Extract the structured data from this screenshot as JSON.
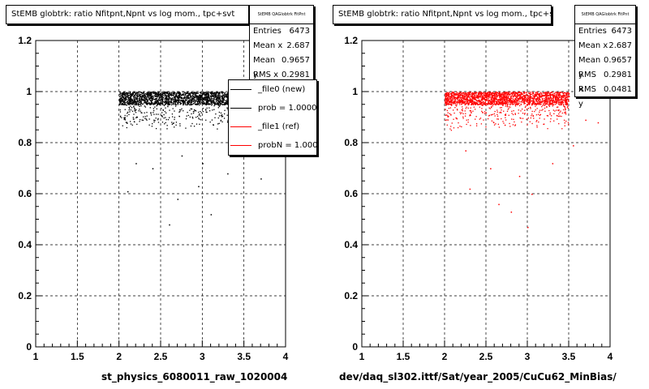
{
  "pads": [
    {
      "title": "StEMB globtrk: ratio Nfitpnt,Npnt vs log mom., tpc+svt",
      "stats_title": "StEMB QAGlobtrk FitPnt NoHitTS",
      "stats": [
        {
          "label": "Entries",
          "value": "6473"
        },
        {
          "label": "Mean x",
          "value": "2.687"
        },
        {
          "label": "Mean y",
          "value": "0.9657"
        },
        {
          "label": "RMS x",
          "value": "0.2981"
        }
      ],
      "legend": [
        {
          "text": "_file0 (new)",
          "color": "#000000"
        },
        {
          "text": "prob = 1.000000",
          "color": "#000000"
        },
        {
          "text": "_file1 (ref)",
          "color": "#ff0000"
        },
        {
          "text": "probN = 1.000000",
          "color": "#ff0000"
        }
      ],
      "bottom_label": "st_physics_6080011_raw_1020004",
      "marker_color": "#000000"
    },
    {
      "title": "StEMB globtrk: ratio Nfitpnt,Npnt vs log mom., tpc+svt",
      "stats_title": "StEMB QAGlobtrk FitPnt NoHitTS",
      "stats": [
        {
          "label": "Entries",
          "value": "6473"
        },
        {
          "label": "Mean x",
          "value": "2.687"
        },
        {
          "label": "Mean y",
          "value": "0.9657"
        },
        {
          "label": "RMS x",
          "value": "0.2981"
        },
        {
          "label": "RMS y",
          "value": "0.0481"
        }
      ],
      "bottom_label": "dev/daq_sl302.ittf/Sat/year_2005/CuCu62_MinBias/",
      "marker_color": "#ff0000"
    }
  ],
  "chart_data": [
    {
      "type": "scatter",
      "title": "StEMB globtrk: ratio Nfitpnt,Npnt vs log mom., tpc+svt",
      "xlim": [
        1,
        4
      ],
      "ylim": [
        0,
        1.2
      ],
      "x_ticks": [
        "1",
        "1.5",
        "2",
        "2.5",
        "3",
        "3.5",
        "4"
      ],
      "y_ticks": [
        "0",
        "0.2",
        "0.4",
        "0.6",
        "0.8",
        "1",
        "1.2"
      ],
      "grid": true,
      "color": "#000000",
      "band": {
        "x": [
          2.0,
          3.5
        ],
        "y": [
          0.85,
          1.0
        ],
        "dense_y": [
          0.95,
          1.0
        ]
      },
      "outliers": [
        [
          2.4,
          0.7
        ],
        [
          2.6,
          0.48
        ],
        [
          2.7,
          0.58
        ],
        [
          3.1,
          0.52
        ],
        [
          2.95,
          0.63
        ],
        [
          3.3,
          0.68
        ],
        [
          2.2,
          0.72
        ],
        [
          3.6,
          0.79
        ],
        [
          2.75,
          0.75
        ],
        [
          3.0,
          0.72
        ],
        [
          2.1,
          0.61
        ],
        [
          3.7,
          0.66
        ]
      ]
    },
    {
      "type": "scatter",
      "title": "StEMB globtrk: ratio Nfitpnt,Npnt vs log mom., tpc+svt",
      "xlim": [
        1,
        4
      ],
      "ylim": [
        0,
        1.2
      ],
      "x_ticks": [
        "1",
        "1.5",
        "2",
        "2.5",
        "3",
        "3.5",
        "4"
      ],
      "y_ticks": [
        "0",
        "0.2",
        "0.4",
        "0.6",
        "0.8",
        "1",
        "1.2"
      ],
      "grid": true,
      "color": "#ff0000",
      "band": {
        "x": [
          2.0,
          3.5
        ],
        "y": [
          0.85,
          1.0
        ],
        "dense_y": [
          0.95,
          1.0
        ]
      },
      "outliers": [
        [
          2.3,
          0.62
        ],
        [
          2.55,
          0.7
        ],
        [
          2.8,
          0.53
        ],
        [
          3.05,
          0.6
        ],
        [
          3.3,
          0.72
        ],
        [
          2.25,
          0.77
        ],
        [
          3.55,
          0.79
        ],
        [
          2.65,
          0.56
        ],
        [
          3.0,
          0.47
        ],
        [
          3.7,
          0.89
        ],
        [
          3.85,
          0.88
        ],
        [
          2.9,
          0.67
        ]
      ]
    }
  ]
}
